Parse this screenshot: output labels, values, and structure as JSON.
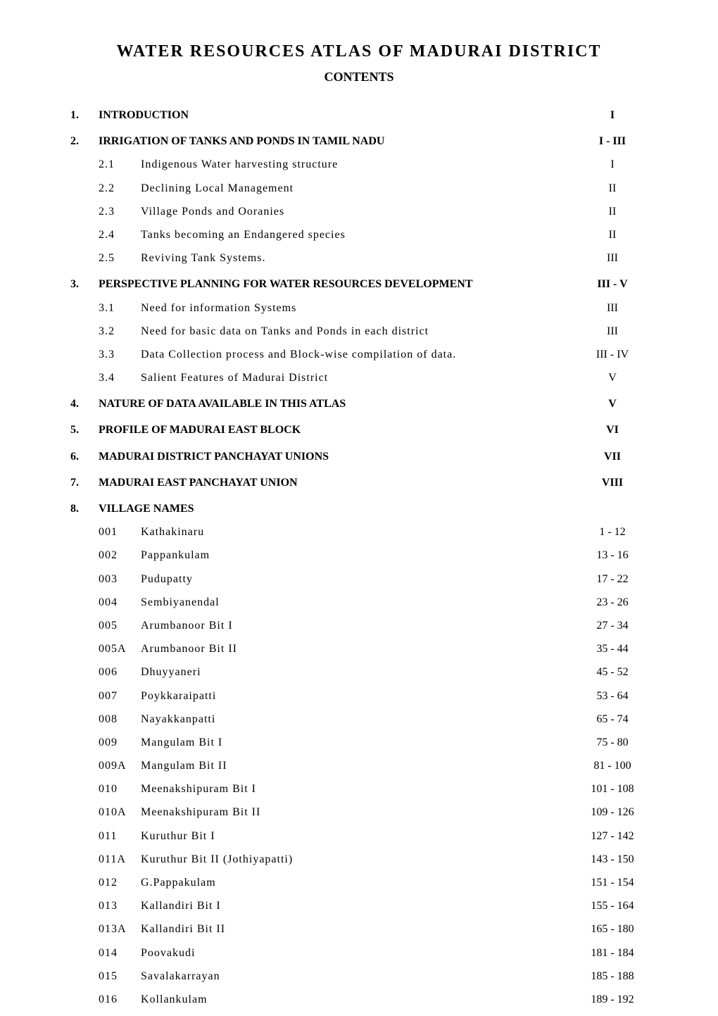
{
  "title": "WATER RESOURCES ATLAS OF MADURAI DISTRICT",
  "subtitle": "CONTENTS",
  "sections": [
    {
      "num": "1.",
      "title": "INTRODUCTION",
      "page": "I",
      "bold": true,
      "subs": []
    },
    {
      "num": "2.",
      "title": "IRRIGATION OF TANKS AND PONDS IN TAMIL NADU",
      "page": "I - III",
      "bold": true,
      "subs": [
        {
          "num": "2.1",
          "title": "Indigenous Water harvesting structure",
          "page": "I"
        },
        {
          "num": "2.2",
          "title": "Declining Local Management",
          "page": "II"
        },
        {
          "num": "2.3",
          "title": "Village Ponds and Ooranies",
          "page": "II"
        },
        {
          "num": "2.4",
          "title": "Tanks becoming an Endangered species",
          "page": "II"
        },
        {
          "num": "2.5",
          "title": "Reviving Tank Systems.",
          "page": "III"
        }
      ]
    },
    {
      "num": "3.",
      "title": "PERSPECTIVE PLANNING FOR WATER RESOURCES DEVELOPMENT",
      "page": "III - V",
      "bold": true,
      "subs": [
        {
          "num": "3.1",
          "title": "Need for information Systems",
          "page": "III"
        },
        {
          "num": "3.2",
          "title": "Need for basic data on Tanks and Ponds in  each district",
          "page": "III"
        },
        {
          "num": "3.3",
          "title": "Data Collection process and Block-wise compilation of data.",
          "page": "III - IV"
        },
        {
          "num": "3.4",
          "title": "Salient Features of Madurai District",
          "page": "V"
        }
      ]
    },
    {
      "num": "4.",
      "title": "NATURE OF DATA AVAILABLE IN THIS ATLAS",
      "page": "V",
      "bold": true,
      "subs": []
    },
    {
      "num": "5.",
      "title": "PROFILE OF MADURAI EAST BLOCK",
      "page": "VI",
      "bold": true,
      "subs": []
    },
    {
      "num": "6.",
      "title": "MADURAI DISTRICT PANCHAYAT UNIONS",
      "page": "VII",
      "bold": true,
      "subs": []
    },
    {
      "num": "7.",
      "title": "MADURAI EAST PANCHAYAT UNION",
      "page": "VIII",
      "bold": true,
      "subs": []
    },
    {
      "num": "8.",
      "title": "VILLAGE NAMES",
      "page": "",
      "bold": true,
      "subs": [
        {
          "num": "001",
          "title": "Kathakinaru",
          "page": "1 - 12"
        },
        {
          "num": "002",
          "title": "Pappankulam",
          "page": "13 - 16"
        },
        {
          "num": "003",
          "title": "Pudupatty",
          "page": "17 - 22"
        },
        {
          "num": "004",
          "title": "Sembiyanendal",
          "page": "23 - 26"
        },
        {
          "num": "005",
          "title": "Arumbanoor Bit I",
          "page": "27 - 34"
        },
        {
          "num": "005A",
          "title": "Arumbanoor Bit II",
          "page": "35 - 44"
        },
        {
          "num": "006",
          "title": "Dhuyyaneri",
          "page": "45 - 52"
        },
        {
          "num": "007",
          "title": "Poykkaraipatti",
          "page": "53 - 64"
        },
        {
          "num": "008",
          "title": "Nayakkanpatti",
          "page": "65 - 74"
        },
        {
          "num": "009",
          "title": "Mangulam Bit I",
          "page": "75 - 80"
        },
        {
          "num": "009A",
          "title": "Mangulam Bit II",
          "page": "81 - 100"
        },
        {
          "num": "010",
          "title": "Meenakshipuram Bit I",
          "page": "101 - 108"
        },
        {
          "num": "010A",
          "title": "Meenakshipuram Bit II",
          "page": "109 - 126"
        },
        {
          "num": "011",
          "title": "Kuruthur Bit I",
          "page": "127 - 142"
        },
        {
          "num": "011A",
          "title": "Kuruthur Bit II (Jothiyapatti)",
          "page": "143 - 150"
        },
        {
          "num": "012",
          "title": "G.Pappakulam",
          "page": "151 - 154"
        },
        {
          "num": "013",
          "title": "Kallandiri Bit I",
          "page": "155 - 164"
        },
        {
          "num": "013A",
          "title": "Kallandiri Bit II",
          "page": "165 - 180"
        },
        {
          "num": "014",
          "title": "Poovakudi",
          "page": "181 - 184"
        },
        {
          "num": "015",
          "title": "Savalakarrayan",
          "page": "185 - 188"
        },
        {
          "num": "016",
          "title": "Kollankulam",
          "page": "189 - 192"
        }
      ]
    }
  ]
}
